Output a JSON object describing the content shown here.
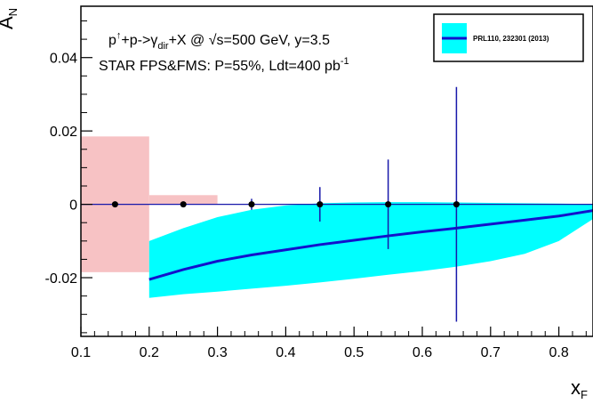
{
  "chart_data": {
    "type": "scatter",
    "x_axis": {
      "label": "x",
      "label_sub": "F",
      "range": [
        0.1,
        0.85
      ],
      "ticks": [
        "0.1",
        "0.2",
        "0.3",
        "0.4",
        "0.5",
        "0.6",
        "0.7",
        "0.8"
      ]
    },
    "y_axis": {
      "label": "A",
      "label_sub": "N",
      "range": [
        -0.036,
        0.054
      ],
      "ticks": [
        "-0.02",
        "0",
        "0.02",
        "0.04"
      ]
    },
    "annotation": {
      "line1": {
        "a": "p",
        "sup": "↑",
        "b": "+p->γ",
        "sub": "dir",
        "c": "+X @ ",
        "sqrt": "√",
        "d": "s=500 GeV, y=3.5"
      },
      "line2": {
        "text": "STAR FPS&FMS: P=55%, Ldt=400 pb",
        "sup": "-1"
      }
    },
    "legend": {
      "position": "top-right",
      "entries": [
        {
          "label": "PRL110, 232301 (2013)"
        }
      ]
    },
    "systematic_boxes": [
      {
        "x0": 0.1,
        "x1": 0.2,
        "y0": -0.0185,
        "y1": 0.0185,
        "color": "#f7c2c4"
      },
      {
        "x0": 0.2,
        "x1": 0.3,
        "y0": 0,
        "y1": 0.0025,
        "color": "#f7c2c4"
      }
    ],
    "projections": {
      "color": "#1818aa",
      "points": [
        {
          "x": 0.15,
          "y": 0,
          "err": 0
        },
        {
          "x": 0.25,
          "y": 0,
          "err": 0
        },
        {
          "x": 0.35,
          "y": 0,
          "err": 0.0015
        },
        {
          "x": 0.45,
          "y": 0,
          "err": 0.0047
        },
        {
          "x": 0.55,
          "y": 0,
          "err": 0.0122
        },
        {
          "x": 0.65,
          "y": 0,
          "err": 0.032
        }
      ]
    },
    "theory": {
      "line_color": "#1212cc",
      "band_color": "#00ffff",
      "curve": [
        [
          0.2,
          -0.0205
        ],
        [
          0.25,
          -0.0178
        ],
        [
          0.3,
          -0.0155
        ],
        [
          0.35,
          -0.0138
        ],
        [
          0.4,
          -0.0124
        ],
        [
          0.45,
          -0.011
        ],
        [
          0.5,
          -0.0098
        ],
        [
          0.55,
          -0.0086
        ],
        [
          0.6,
          -0.0075
        ],
        [
          0.65,
          -0.0065
        ],
        [
          0.7,
          -0.0054
        ],
        [
          0.75,
          -0.0043
        ],
        [
          0.8,
          -0.0032
        ],
        [
          0.85,
          -0.0017
        ]
      ],
      "band_upper": [
        [
          0.2,
          -0.01
        ],
        [
          0.25,
          -0.0065
        ],
        [
          0.3,
          -0.0035
        ],
        [
          0.35,
          -0.0015
        ],
        [
          0.4,
          -0.0003
        ],
        [
          0.45,
          0.0003
        ],
        [
          0.5,
          0.0005
        ],
        [
          0.55,
          0.0006
        ],
        [
          0.6,
          0.0006
        ],
        [
          0.65,
          0.0005
        ],
        [
          0.7,
          0.0004
        ],
        [
          0.75,
          0.0003
        ],
        [
          0.8,
          0.0002
        ],
        [
          0.85,
          0.0001
        ]
      ],
      "band_lower": [
        [
          0.2,
          -0.0255
        ],
        [
          0.25,
          -0.0245
        ],
        [
          0.3,
          -0.0238
        ],
        [
          0.35,
          -0.023
        ],
        [
          0.4,
          -0.0222
        ],
        [
          0.45,
          -0.0213
        ],
        [
          0.5,
          -0.0203
        ],
        [
          0.55,
          -0.0192
        ],
        [
          0.6,
          -0.0182
        ],
        [
          0.65,
          -0.017
        ],
        [
          0.7,
          -0.0155
        ],
        [
          0.75,
          -0.0135
        ],
        [
          0.8,
          -0.01
        ],
        [
          0.85,
          -0.004
        ]
      ]
    }
  }
}
